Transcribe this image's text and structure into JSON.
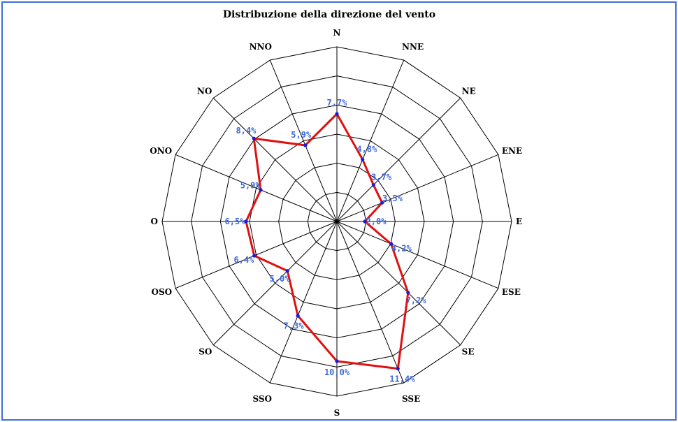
{
  "chart_data": {
    "type": "radar",
    "title": "Distribuzione della direzione del vento",
    "categories": [
      "N",
      "NNE",
      "NE",
      "ENE",
      "E",
      "ESE",
      "SE",
      "SSE",
      "S",
      "SSO",
      "SO",
      "OSO",
      "O",
      "ONO",
      "NO",
      "NNO"
    ],
    "values": [
      7.7,
      4.8,
      3.7,
      3.5,
      2.0,
      4.2,
      7.2,
      11.4,
      10.0,
      7.3,
      5.0,
      6.4,
      6.5,
      5.9,
      8.4,
      5.9
    ],
    "value_labels": [
      "7,7%",
      "4,8%",
      "3,7%",
      "3,5%",
      "2,0%",
      "4,2%",
      "7,2%",
      "11,4%",
      "10,0%",
      "7,3%",
      "5,0%",
      "6,4%",
      "6,5%",
      "5,9%",
      "8,4%",
      "5,9%"
    ],
    "rlim": [
      0,
      12.5
    ],
    "rings": 6,
    "grid": true,
    "colors": {
      "series_line": "#e01010",
      "series_points": "#1a1adc",
      "value_labels": "#3d6ad6",
      "grid": "#000000",
      "border": "#3f6fd8"
    }
  }
}
